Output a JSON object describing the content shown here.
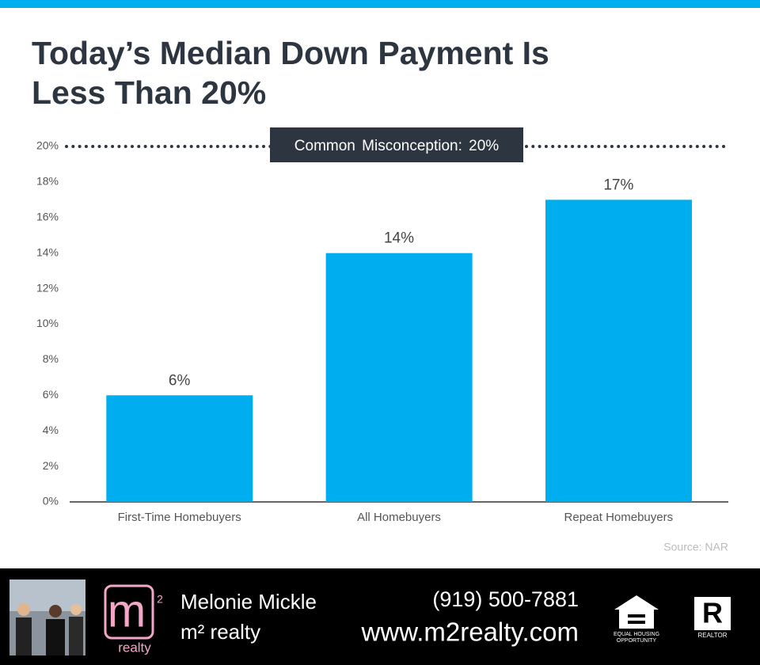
{
  "chart_data": {
    "type": "bar",
    "title": "Today’s Median Down Payment Is Less Than 20%",
    "categories": [
      "First-Time Homebuyers",
      "All Homebuyers",
      "Repeat Homebuyers"
    ],
    "values": [
      6,
      14,
      17
    ],
    "value_labels": [
      "6%",
      "14%",
      "17%"
    ],
    "color": "#00aeef",
    "ylim": [
      0,
      20
    ],
    "yticks": [
      {
        "value": 0,
        "label": "0%"
      },
      {
        "value": 2,
        "label": "2%"
      },
      {
        "value": 4,
        "label": "4%"
      },
      {
        "value": 6,
        "label": "6%"
      },
      {
        "value": 8,
        "label": "8%"
      },
      {
        "value": 10,
        "label": "10%"
      },
      {
        "value": 12,
        "label": "12%"
      },
      {
        "value": 14,
        "label": "14%"
      },
      {
        "value": 16,
        "label": "16%"
      },
      {
        "value": 18,
        "label": "18%"
      },
      {
        "value": 20,
        "label": "20%"
      }
    ],
    "grid": false,
    "reference_line": {
      "value": 20,
      "label": "Common Misconception: 20%"
    },
    "source": "Source: NAR"
  },
  "footer": {
    "agent_name": "Melonie Mickle",
    "company": "m² realty",
    "phone": "(919) 500-7881",
    "website": "www.m2realty.com",
    "logo": {
      "letter": "m",
      "superscript": "2",
      "word": "realty"
    },
    "badges": {
      "equal_housing": [
        "EQUAL HOUSING",
        "OPPORTUNITY"
      ],
      "realtor": "REALTOR"
    }
  }
}
